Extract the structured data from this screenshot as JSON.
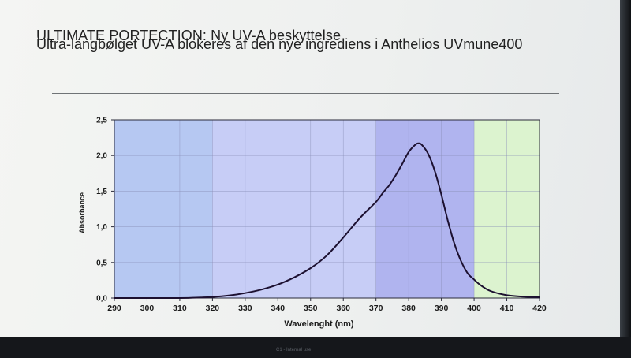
{
  "slide": {
    "title_line1": "ULTIMATE PORTECTION: Ny UV-A beskyttelse",
    "title_line2": "Ultra-langbølget UV-A blokeres af den nye ingrediens i Anthelios UVmune400"
  },
  "taskbar": {
    "text": "C1 - Internal use"
  },
  "chart_data": {
    "type": "line",
    "title": "",
    "xlabel": "Wavelenght (nm)",
    "ylabel": "Absorbance",
    "xlim": [
      290,
      420
    ],
    "ylim": [
      0,
      2.5
    ],
    "x_ticks": [
      290,
      300,
      310,
      320,
      330,
      340,
      350,
      360,
      370,
      380,
      390,
      400,
      410,
      420
    ],
    "x_tick_labels": [
      "290",
      "300",
      "310",
      "320",
      "330",
      "340",
      "350",
      "360",
      "370",
      "380",
      "390",
      "400",
      "410",
      "420"
    ],
    "y_ticks": [
      0,
      0.5,
      1.0,
      1.5,
      2.0,
      2.5
    ],
    "y_tick_labels": [
      "0,0",
      "0,5",
      "1,0",
      "1,5",
      "2,0",
      "2,5"
    ],
    "grid": true,
    "legend": "none",
    "bands": [
      {
        "x_start": 290,
        "x_end": 320,
        "color": "#b6c8f2"
      },
      {
        "x_start": 320,
        "x_end": 370,
        "color": "#c7cdf6"
      },
      {
        "x_start": 370,
        "x_end": 400,
        "color": "#b0b4ef"
      },
      {
        "x_start": 400,
        "x_end": 420,
        "color": "#dcf3cf"
      }
    ],
    "series": [
      {
        "color": "#1c1030",
        "x": [
          290,
          300,
          310,
          315,
          320,
          325,
          330,
          335,
          340,
          345,
          350,
          355,
          360,
          365,
          370,
          372,
          374,
          376,
          378,
          380,
          382,
          383,
          384,
          386,
          388,
          390,
          392,
          394,
          396,
          398,
          400,
          402,
          405,
          410,
          415,
          420
        ],
        "y": [
          0.0,
          0.0,
          0.0,
          0.005,
          0.015,
          0.035,
          0.07,
          0.12,
          0.19,
          0.29,
          0.42,
          0.6,
          0.85,
          1.12,
          1.35,
          1.47,
          1.58,
          1.72,
          1.88,
          2.05,
          2.15,
          2.17,
          2.15,
          2.02,
          1.78,
          1.45,
          1.08,
          0.76,
          0.52,
          0.35,
          0.26,
          0.18,
          0.1,
          0.04,
          0.02,
          0.01
        ]
      }
    ]
  }
}
